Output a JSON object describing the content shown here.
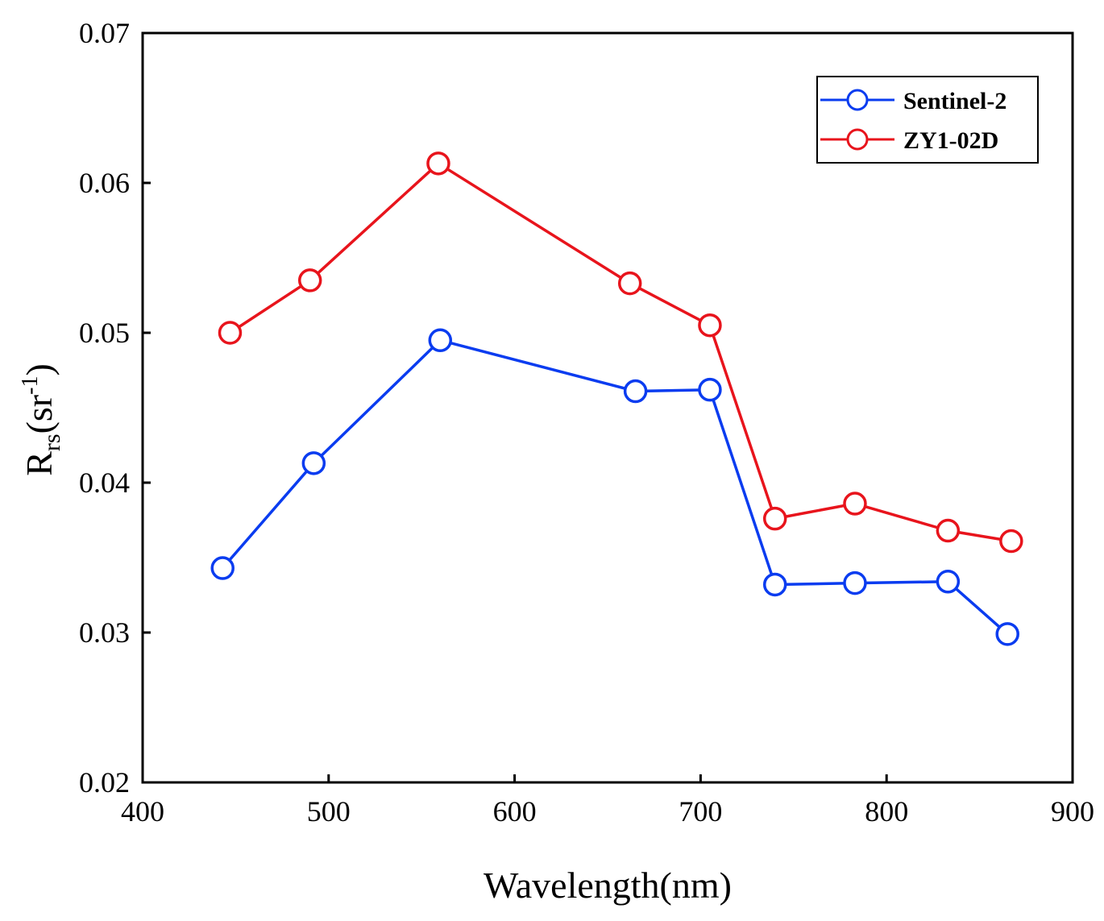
{
  "chart_data": {
    "type": "line",
    "title": "",
    "xlabel": "Wavelength(nm)",
    "ylabel": {
      "main": "R",
      "sub": "rs",
      "unit_open": "(sr",
      "sup": "-1",
      "unit_close": ")"
    },
    "xlim": [
      400,
      900
    ],
    "ylim": [
      0.02,
      0.07
    ],
    "xticks": [
      400,
      500,
      600,
      700,
      800,
      900
    ],
    "xtick_labels": [
      "400",
      "500",
      "600",
      "700",
      "800",
      "900"
    ],
    "yticks": [
      0.02,
      0.03,
      0.04,
      0.05,
      0.06,
      0.07
    ],
    "ytick_labels": [
      "0.02",
      "0.03",
      "0.04",
      "0.05",
      "0.06",
      "0.07"
    ],
    "grid": false,
    "legend_position": "top-right",
    "series": [
      {
        "name": "Sentinel-2",
        "color": "#0a3cf0",
        "marker": "open-circle",
        "x": [
          443,
          492,
          560,
          665,
          705,
          740,
          783,
          833,
          865
        ],
        "y": [
          0.0343,
          0.0413,
          0.0495,
          0.0461,
          0.0462,
          0.0332,
          0.0333,
          0.0334,
          0.0299
        ]
      },
      {
        "name": "ZY1-02D",
        "color": "#e8141c",
        "marker": "open-circle",
        "x": [
          447,
          490,
          559,
          662,
          705,
          740,
          783,
          833,
          867
        ],
        "y": [
          0.05,
          0.0535,
          0.0613,
          0.0533,
          0.0505,
          0.0376,
          0.0386,
          0.0368,
          0.0361
        ]
      }
    ]
  }
}
